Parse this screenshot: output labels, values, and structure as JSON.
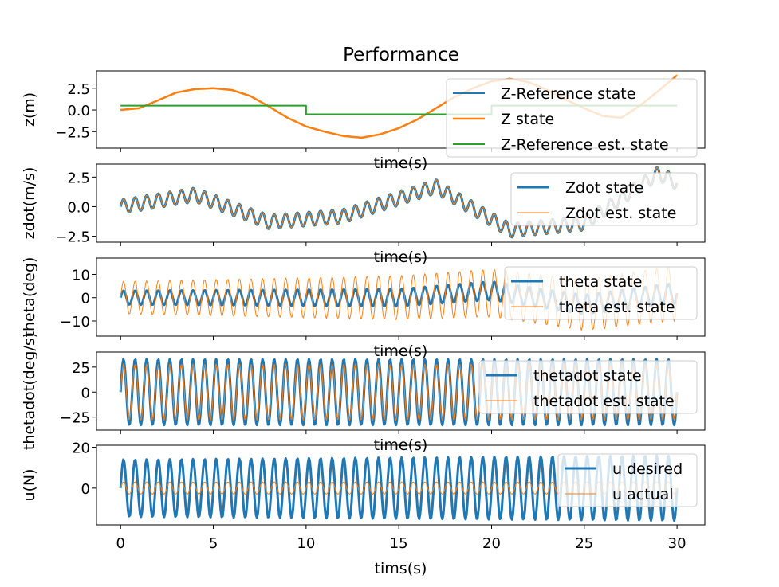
{
  "title": "Performance",
  "colors": {
    "blue": "#1f77b4",
    "orange": "#ff7f0e",
    "green": "#2ca02c"
  },
  "chart_data": [
    {
      "type": "line",
      "xlabel": "time(s)",
      "ylabel": "z(m)",
      "xlim": [
        -1.3,
        31.5
      ],
      "ylim": [
        -4.4,
        4.5
      ],
      "yticks": [
        "2.5",
        "0.0",
        "−2.5"
      ],
      "ytick_values": [
        2.5,
        0.0,
        -2.5
      ],
      "legend_position": "upper-right",
      "series": [
        {
          "name": "Z-Reference state",
          "color": "#1f77b4",
          "lw": 2,
          "kind": "points",
          "x": [
            0,
            1,
            2,
            3,
            4,
            5,
            6,
            7,
            8,
            9,
            10,
            11,
            12,
            13,
            14,
            15,
            16,
            17,
            18,
            19,
            20,
            21,
            22,
            23,
            24,
            25,
            26,
            27,
            28,
            29,
            30
          ],
          "y": [
            0.0,
            0.2,
            1.1,
            2.0,
            2.4,
            2.5,
            2.3,
            1.6,
            0.4,
            -0.9,
            -1.9,
            -2.5,
            -3.0,
            -3.2,
            -2.8,
            -2.1,
            -1.1,
            0.2,
            1.5,
            2.5,
            3.3,
            3.6,
            3.2,
            2.3,
            1.2,
            0.2,
            -0.7,
            -0.9,
            0.5,
            2.2,
            4.0
          ]
        },
        {
          "name": "Z state",
          "color": "#ff7f0e",
          "lw": 2.5,
          "kind": "points",
          "x": [
            0,
            1,
            2,
            3,
            4,
            5,
            6,
            7,
            8,
            9,
            10,
            11,
            12,
            13,
            14,
            15,
            16,
            17,
            18,
            19,
            20,
            21,
            22,
            23,
            24,
            25,
            26,
            27,
            28,
            29,
            30
          ],
          "y": [
            0.0,
            0.2,
            1.1,
            2.0,
            2.4,
            2.5,
            2.3,
            1.6,
            0.4,
            -0.9,
            -1.9,
            -2.5,
            -3.0,
            -3.2,
            -2.8,
            -2.1,
            -1.1,
            0.2,
            1.5,
            2.5,
            3.3,
            3.6,
            3.2,
            2.3,
            1.2,
            0.2,
            -0.7,
            -0.9,
            0.5,
            2.2,
            4.0
          ]
        },
        {
          "name": "Z-Reference est. state",
          "color": "#2ca02c",
          "lw": 2,
          "kind": "steps",
          "x": [
            0,
            10,
            10,
            20,
            20,
            30
          ],
          "y": [
            0.5,
            0.5,
            -0.5,
            -0.5,
            0.5,
            0.5
          ]
        }
      ]
    },
    {
      "type": "line",
      "xlabel": "time(s)",
      "ylabel": "zdot(m/s)",
      "xlim": [
        -1.3,
        31.5
      ],
      "ylim": [
        -3.0,
        3.6
      ],
      "yticks": [
        "2.5",
        "0.0",
        "−2.5"
      ],
      "ytick_values": [
        2.5,
        0.0,
        -2.5
      ],
      "legend_position": "upper-right",
      "series": [
        {
          "name": "Zdot state",
          "color": "#1f77b4",
          "lw": 3,
          "kind": "oscillation",
          "base_x": [
            0,
            4,
            8,
            12,
            17,
            21,
            25,
            29,
            30
          ],
          "base_y": [
            0,
            1.0,
            -1.3,
            -0.8,
            1.7,
            -2.0,
            -1.4,
            2.8,
            2.0
          ],
          "amplitude": [
            0.6,
            0.6
          ],
          "frequency_hz": 1.6
        },
        {
          "name": "Zdot est. state",
          "color": "#ff7f0e",
          "lw": 1,
          "kind": "oscillation",
          "base_x": [
            0,
            4,
            8,
            12,
            17,
            21,
            25,
            29,
            30
          ],
          "base_y": [
            0,
            1.0,
            -1.3,
            -0.8,
            1.7,
            -2.0,
            -1.4,
            2.8,
            2.0
          ],
          "amplitude": [
            0.6,
            0.6
          ],
          "frequency_hz": 1.6
        }
      ]
    },
    {
      "type": "line",
      "xlabel": "time(s)",
      "ylabel": "theta(deg)",
      "xlim": [
        -1.3,
        31.5
      ],
      "ylim": [
        -16.5,
        17.0
      ],
      "yticks": [
        "10",
        "0",
        "−10"
      ],
      "ytick_values": [
        10,
        0,
        -10
      ],
      "legend_position": "upper-right",
      "series": [
        {
          "name": "theta state",
          "color": "#1f77b4",
          "lw": 3,
          "kind": "oscillation",
          "base_x": [
            0,
            5,
            10,
            15,
            20,
            25,
            30
          ],
          "base_y": [
            0,
            0,
            0,
            0,
            3,
            -3,
            2
          ],
          "amplitude": [
            3.0,
            4.5
          ],
          "frequency_hz": 1.6
        },
        {
          "name": "theta est. state",
          "color": "#ff7f0e",
          "lw": 1,
          "kind": "oscillation",
          "base_x": [
            0,
            5,
            10,
            15,
            20,
            25,
            30
          ],
          "base_y": [
            0,
            0,
            0,
            0,
            2,
            -3,
            2
          ],
          "amplitude": [
            7.0,
            12.0
          ],
          "frequency_hz": 1.6
        }
      ]
    },
    {
      "type": "line",
      "xlabel": "time(s)",
      "ylabel": "thetadot(deg/s)",
      "xlim": [
        -1.3,
        31.5
      ],
      "ylim": [
        -38.0,
        40.0
      ],
      "yticks": [
        "25",
        "0",
        "−25"
      ],
      "ytick_values": [
        25,
        0,
        -25
      ],
      "legend_position": "upper-right",
      "series": [
        {
          "name": "thetadot state",
          "color": "#1f77b4",
          "lw": 3,
          "kind": "oscillation",
          "base_x": [
            0,
            30
          ],
          "base_y": [
            0,
            0
          ],
          "amplitude": [
            33.0,
            33.0
          ],
          "frequency_hz": 1.6
        },
        {
          "name": "thetadot est. state",
          "color": "#ff7f0e",
          "lw": 1,
          "kind": "oscillation",
          "base_x": [
            0,
            30
          ],
          "base_y": [
            0,
            0
          ],
          "amplitude": [
            28.0,
            28.0
          ],
          "frequency_hz": 1.6
        }
      ]
    },
    {
      "type": "line",
      "xlabel": "tims(s)",
      "ylabel": "u(N)",
      "xlim": [
        -1.3,
        31.5
      ],
      "ylim": [
        -18.0,
        21.0
      ],
      "xticks": [
        "0",
        "5",
        "10",
        "15",
        "20",
        "25",
        "30"
      ],
      "xtick_values": [
        0,
        5,
        10,
        15,
        20,
        25,
        30
      ],
      "yticks": [
        "20",
        "0"
      ],
      "ytick_values": [
        20,
        0
      ],
      "legend_position": "upper-right",
      "series": [
        {
          "name": "u desired",
          "color": "#1f77b4",
          "lw": 3,
          "kind": "oscillation",
          "base_x": [
            0,
            30
          ],
          "base_y": [
            0,
            0
          ],
          "amplitude": [
            14.0,
            16.0
          ],
          "frequency_hz": 1.6
        },
        {
          "name": "u actual",
          "color": "#ff7f0e",
          "lw": 1,
          "kind": "oscillation",
          "base_x": [
            0,
            30
          ],
          "base_y": [
            0,
            0
          ],
          "amplitude": [
            3.0,
            3.0
          ],
          "frequency_hz": 1.6
        }
      ]
    }
  ]
}
